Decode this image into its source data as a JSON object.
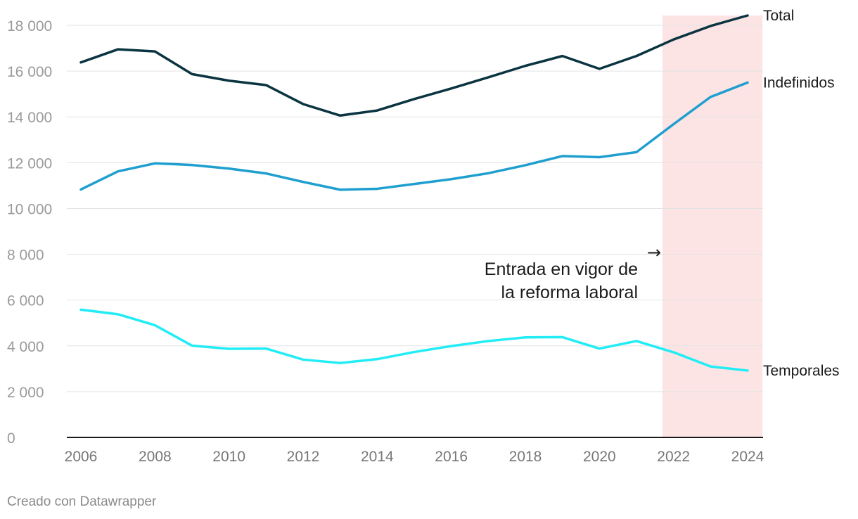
{
  "chart_data": {
    "type": "line",
    "x": [
      2006,
      2007,
      2008,
      2009,
      2010,
      2011,
      2012,
      2013,
      2014,
      2015,
      2016,
      2017,
      2018,
      2019,
      2020,
      2021,
      2022,
      2023,
      2024
    ],
    "series": [
      {
        "name": "Total",
        "color": "#0a3440",
        "values": [
          16380,
          16950,
          16860,
          15870,
          15580,
          15390,
          14560,
          14060,
          14280,
          14780,
          15240,
          15730,
          16230,
          16660,
          16100,
          16660,
          17380,
          17970,
          18430
        ]
      },
      {
        "name": "Indefinidos",
        "color": "#1f9fcf",
        "values": [
          10830,
          11620,
          11970,
          11900,
          11740,
          11530,
          11160,
          10820,
          10860,
          11070,
          11280,
          11540,
          11890,
          12290,
          12240,
          12460,
          13680,
          14870,
          15500
        ]
      },
      {
        "name": "Temporales",
        "color": "#22ecf5",
        "values": [
          5580,
          5380,
          4900,
          4010,
          3870,
          3880,
          3400,
          3250,
          3420,
          3730,
          3990,
          4210,
          4370,
          4380,
          3880,
          4210,
          3720,
          3100,
          2920
        ]
      }
    ],
    "y_ticks": [
      0,
      2000,
      4000,
      6000,
      8000,
      10000,
      12000,
      14000,
      16000,
      18000
    ],
    "y_tick_labels": [
      "0",
      "2 000",
      "4 000",
      "6 000",
      "8 000",
      "10 000",
      "12 000",
      "14 000",
      "16 000",
      "18 000"
    ],
    "x_ticks": [
      2006,
      2008,
      2010,
      2012,
      2014,
      2016,
      2018,
      2020,
      2022,
      2024
    ],
    "x_tick_labels": [
      "2006",
      "2008",
      "2010",
      "2012",
      "2014",
      "2016",
      "2018",
      "2020",
      "2022",
      "2024"
    ],
    "xlim": [
      2006,
      2024
    ],
    "ylim": [
      0,
      18000
    ],
    "grid": true,
    "highlight_range": {
      "from": 2021.7,
      "to": 2024.4,
      "color": "#fce4e4"
    },
    "annotation": {
      "lines": [
        "Entrada en vigor de",
        "la reforma laboral"
      ],
      "arrow": "→"
    },
    "title": "",
    "xlabel": "",
    "ylabel": ""
  },
  "footer": {
    "credit": "Creado con Datawrapper"
  }
}
